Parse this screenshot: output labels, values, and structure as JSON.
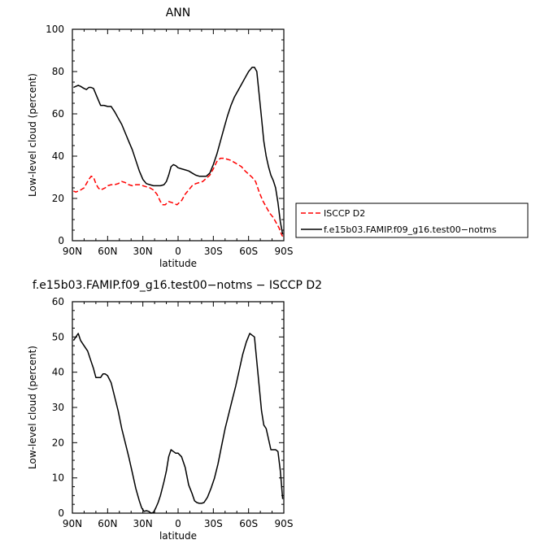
{
  "chart_data": [
    {
      "type": "line",
      "title": "ANN",
      "xlabel": "latitude",
      "ylabel": "Low-level cloud (percent)",
      "xlim": [
        90,
        -90
      ],
      "ylim": [
        0,
        100
      ],
      "x_ticks": [
        90,
        60,
        30,
        0,
        -30,
        -60,
        -90
      ],
      "x_tick_labels": [
        "90N",
        "60N",
        "30N",
        "0",
        "30S",
        "60S",
        "90S"
      ],
      "y_ticks": [
        0,
        20,
        40,
        60,
        80,
        100
      ],
      "legend": {
        "placement": "right"
      },
      "series": [
        {
          "name": "ISCCP D2",
          "color": "#ff0000",
          "style": "dashed",
          "x": [
            89,
            87,
            85,
            83,
            80,
            78,
            76,
            74,
            72,
            70,
            68,
            66,
            64,
            62,
            60,
            57,
            54,
            51,
            48,
            45,
            42,
            39,
            36,
            33,
            30,
            27,
            24,
            21,
            18,
            15,
            13,
            11,
            8,
            5,
            3,
            1,
            -1,
            -3,
            -6,
            -9,
            -12,
            -15,
            -18,
            -21,
            -24,
            -27,
            -30,
            -33,
            -36,
            -39,
            -42,
            -45,
            -48,
            -51,
            -54,
            -57,
            -60,
            -63,
            -66,
            -69,
            -72,
            -75,
            -78,
            -81,
            -84,
            -86,
            -88,
            -89
          ],
          "values": [
            23.5,
            23,
            23.5,
            24,
            25,
            27,
            29,
            30.5,
            30,
            27,
            25,
            24,
            24.5,
            25,
            26,
            26.5,
            26.5,
            27,
            28,
            27.5,
            26.5,
            26,
            26.5,
            26.5,
            26,
            25.5,
            25,
            24,
            22,
            18.5,
            17,
            17,
            18.5,
            18,
            17.5,
            17,
            18,
            19,
            22,
            24,
            26,
            27,
            27.5,
            28,
            29.5,
            31,
            34,
            37.5,
            39,
            39,
            38.5,
            38,
            37,
            36,
            35,
            33,
            31.5,
            30,
            28,
            23,
            19,
            16,
            13,
            11,
            8,
            6,
            3,
            2
          ]
        },
        {
          "name": "f.e15b03.FAMIP.f09_g16.test00−notms",
          "color": "#000000",
          "style": "solid",
          "x": [
            89,
            87,
            85,
            83,
            80,
            78,
            76,
            74,
            72,
            69,
            66,
            63,
            60,
            57,
            54,
            51,
            48,
            45,
            42,
            39,
            36,
            33,
            30,
            27,
            24,
            21,
            18,
            15,
            12,
            10,
            8,
            6,
            4,
            2,
            0,
            -3,
            -6,
            -9,
            -12,
            -15,
            -18,
            -21,
            -24,
            -27,
            -30,
            -33,
            -36,
            -39,
            -42,
            -45,
            -48,
            -51,
            -54,
            -57,
            -60,
            -63,
            -65,
            -67,
            -69,
            -71,
            -73,
            -75,
            -77,
            -79,
            -81,
            -83,
            -85,
            -87,
            -89
          ],
          "values": [
            72.5,
            73,
            73.5,
            73,
            72,
            71.5,
            72.5,
            72.5,
            72,
            68,
            64,
            64,
            63.5,
            63.5,
            61,
            58,
            55,
            51,
            47,
            43,
            38,
            33,
            29,
            27,
            26.5,
            26,
            26,
            26,
            26.5,
            28,
            31,
            35,
            36,
            35.5,
            34.5,
            34,
            33.5,
            33,
            32,
            31,
            30.5,
            30.5,
            30.5,
            32,
            36,
            41,
            47,
            53,
            59,
            64,
            68,
            71,
            74,
            77,
            80,
            82,
            82,
            80,
            69,
            58,
            47,
            40,
            35,
            31,
            28.5,
            25,
            18,
            9,
            3
          ]
        }
      ]
    },
    {
      "type": "line",
      "title": "f.e15b03.FAMIP.f09_g16.test00−notms − ISCCP D2",
      "xlabel": "latitude",
      "ylabel": "Low-level cloud (percent)",
      "xlim": [
        90,
        -90
      ],
      "ylim": [
        0,
        60
      ],
      "x_ticks": [
        90,
        60,
        30,
        0,
        -30,
        -60,
        -90
      ],
      "x_tick_labels": [
        "90N",
        "60N",
        "30N",
        "0",
        "30S",
        "60S",
        "90S"
      ],
      "y_ticks": [
        0,
        10,
        20,
        30,
        40,
        50,
        60
      ],
      "series": [
        {
          "color": "#000000",
          "style": "solid",
          "x": [
            89,
            87,
            85,
            83,
            80,
            77,
            74,
            72,
            70,
            68,
            66,
            64,
            62,
            60,
            57,
            54,
            51,
            48,
            45,
            42,
            39,
            36,
            33,
            31,
            29,
            27,
            25,
            23,
            21,
            19,
            17,
            15,
            12,
            10,
            8,
            6,
            4,
            2,
            0,
            -3,
            -6,
            -9,
            -12,
            -14,
            -16,
            -18,
            -20,
            -22,
            -25,
            -28,
            -31,
            -34,
            -37,
            -40,
            -43,
            -46,
            -49,
            -52,
            -55,
            -58,
            -61,
            -63,
            -65,
            -67,
            -69,
            -71,
            -73,
            -75,
            -77,
            -79,
            -81,
            -83,
            -85,
            -87,
            -89
          ],
          "values": [
            49,
            50,
            51,
            49,
            47.5,
            46,
            43,
            41,
            38.5,
            38.5,
            38.5,
            39.5,
            39.5,
            39,
            37,
            33,
            29,
            24,
            20,
            16,
            11.5,
            7,
            3.5,
            1.5,
            0.5,
            0.7,
            0.5,
            0,
            0.2,
            1.5,
            3,
            5,
            9,
            12,
            16,
            18,
            17.5,
            17,
            17,
            16,
            13,
            8,
            5.5,
            3.5,
            3,
            2.8,
            2.8,
            3,
            4.5,
            7,
            10,
            14,
            19,
            24,
            28,
            32,
            36,
            40.5,
            45,
            48.5,
            51,
            50.5,
            50,
            43,
            36,
            29,
            25,
            24,
            21,
            18,
            18,
            18,
            17.5,
            12,
            4
          ]
        }
      ]
    }
  ]
}
